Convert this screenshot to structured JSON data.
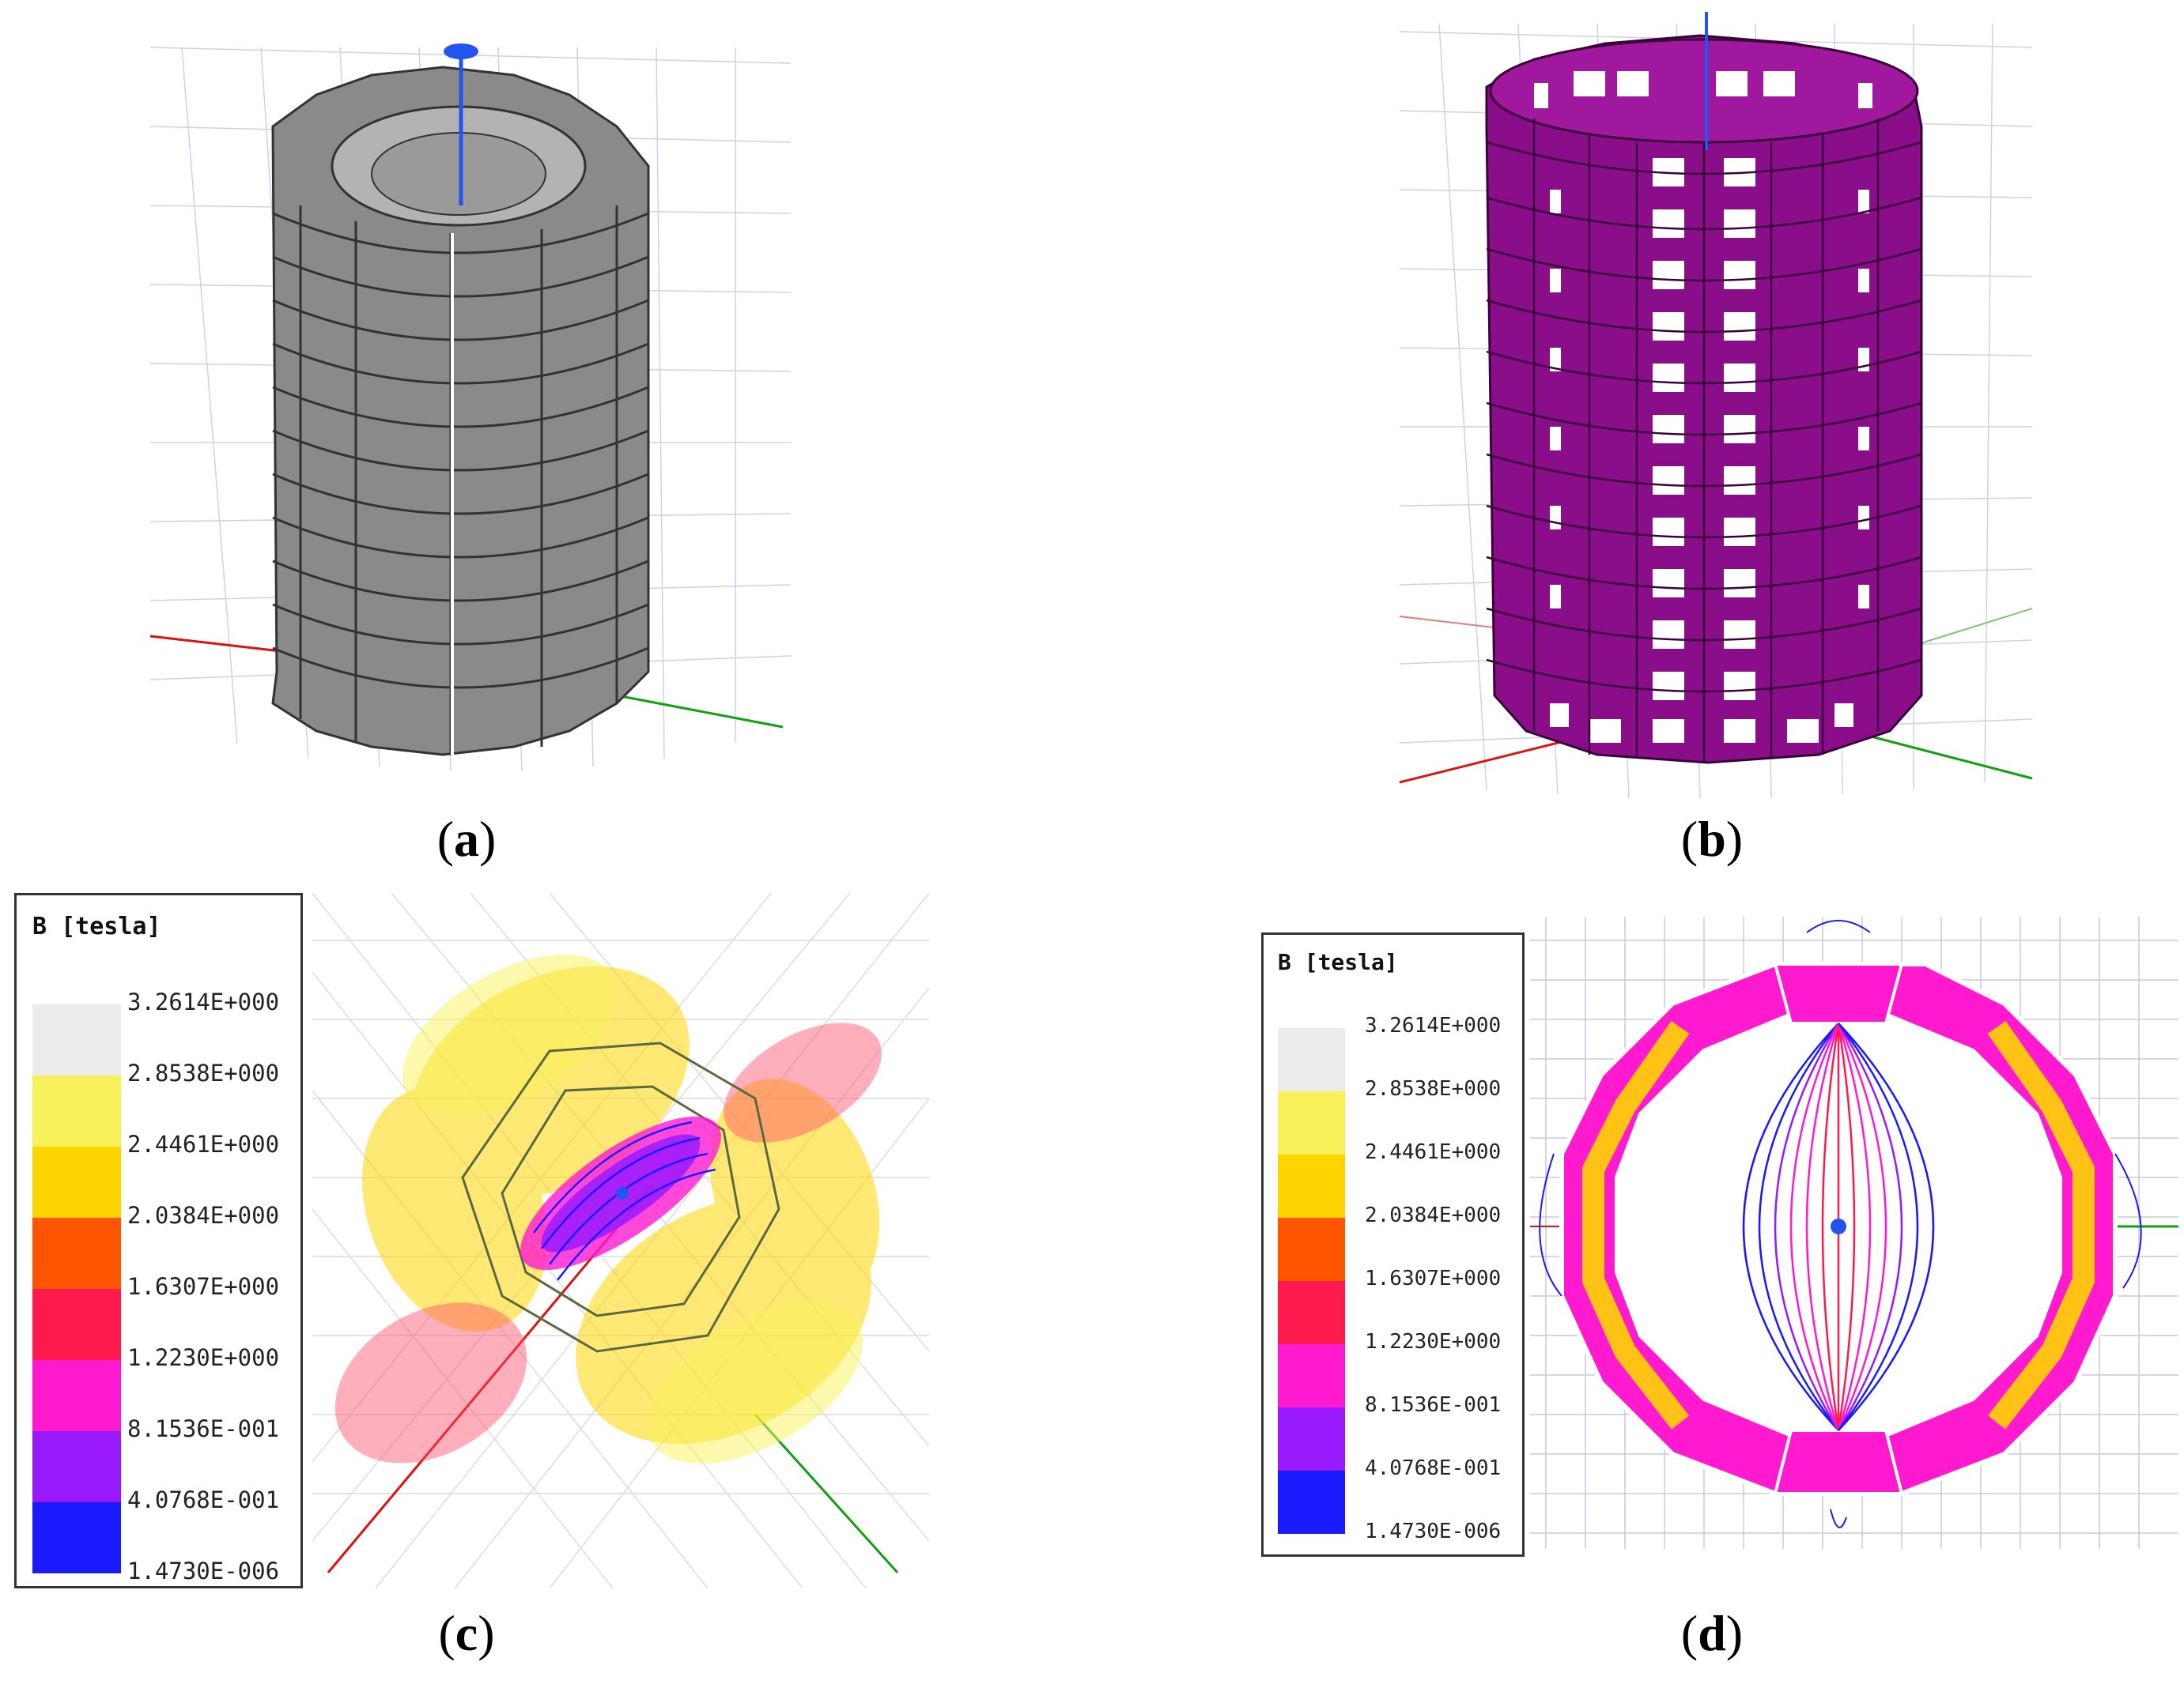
{
  "captions": {
    "a": "a",
    "b": "b",
    "c": "c",
    "d": "d"
  },
  "legend": {
    "title": "B [tesla]",
    "entries": [
      {
        "value": "3.2614E+000",
        "color": "#ececec"
      },
      {
        "value": "2.8538E+000",
        "color": "#f8f25a"
      },
      {
        "value": "2.4461E+000",
        "color": "#ffd500"
      },
      {
        "value": "2.0384E+000",
        "color": "#ff5500"
      },
      {
        "value": "1.6307E+000",
        "color": "#ff1a4d"
      },
      {
        "value": "1.2230E+000",
        "color": "#ff1ad0"
      },
      {
        "value": "8.1536E-001",
        "color": "#9a1aff"
      },
      {
        "value": "4.0768E-001",
        "color": "#1a1aff"
      },
      {
        "value": "1.4730E-006",
        "color": null
      }
    ]
  },
  "colors": {
    "gray_magnet": "#8a8a8a",
    "purple_frame": "#8a0d8a",
    "axis_red": "#e01010",
    "axis_green": "#10a010",
    "axis_blue": "#2255ee",
    "grid": "#c8c8e0"
  }
}
